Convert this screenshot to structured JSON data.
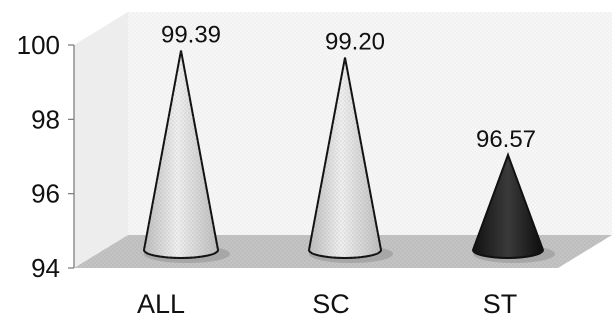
{
  "chart_data": {
    "type": "bar",
    "style": "3d-cone",
    "title": "",
    "xlabel": "",
    "ylabel": "",
    "categories": [
      "ALL",
      "SC",
      "ST"
    ],
    "values": [
      99.39,
      99.2,
      96.57
    ],
    "value_labels": [
      "99.39",
      "99.20",
      "96.57"
    ],
    "ylim": [
      94,
      100
    ],
    "yticks": [
      "94",
      "96",
      "98",
      "100"
    ],
    "grid": false,
    "legend": "none",
    "colors": {
      "cone_light": "#e4e4e4",
      "cone_mid": "#c8c8c8",
      "cone_dark": "#2a2a2a",
      "floor": "#bdbdbd",
      "wall": "#f3f3f3",
      "axis": "#777777"
    },
    "shades": [
      "light",
      "light",
      "dark"
    ]
  }
}
